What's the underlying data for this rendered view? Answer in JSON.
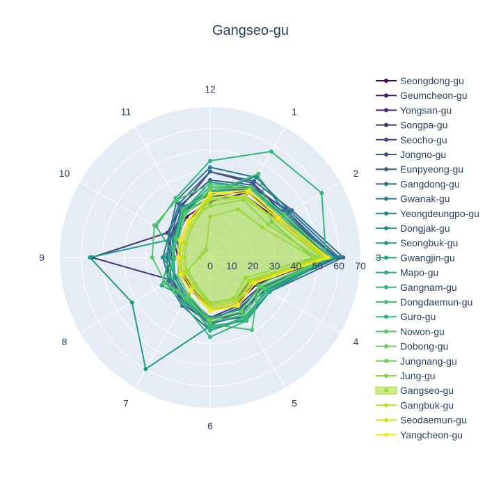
{
  "chart_data": {
    "type": "radar",
    "title": "Gangseo-gu",
    "angular_categories": [
      "12",
      "1",
      "2",
      "3",
      "4",
      "5",
      "6",
      "7",
      "8",
      "9",
      "10",
      "11"
    ],
    "radial_range": [
      0,
      70
    ],
    "radial_ticks": [
      "0",
      "10",
      "20",
      "30",
      "40",
      "50",
      "60",
      "70"
    ],
    "highlighted_series": "Gangseo-gu",
    "series": [
      {
        "name": "Seongdong-gu",
        "color": "#440154",
        "values": [
          28,
          33,
          36,
          54,
          25,
          25,
          24,
          16,
          15,
          14,
          16,
          20
        ]
      },
      {
        "name": "Geumcheon-gu",
        "color": "#471365",
        "values": [
          26,
          35,
          37,
          56,
          22,
          23,
          22,
          17,
          16,
          14,
          18,
          22
        ]
      },
      {
        "name": "Yongsan-gu",
        "color": "#482475",
        "values": [
          28,
          36,
          37,
          57,
          24,
          24,
          23,
          18,
          16,
          15,
          20,
          24
        ]
      },
      {
        "name": "Songpa-gu",
        "color": "#463480",
        "values": [
          40,
          40,
          40,
          58,
          27,
          26,
          28,
          22,
          21,
          55,
          23,
          27
        ]
      },
      {
        "name": "Seocho-gu",
        "color": "#414487",
        "values": [
          30,
          38,
          43,
          60,
          30,
          29,
          31,
          25,
          22,
          20,
          21,
          25
        ]
      },
      {
        "name": "Jongno-gu",
        "color": "#3b528b",
        "values": [
          30,
          37,
          41,
          59,
          28,
          27,
          29,
          22,
          19,
          18,
          20,
          26
        ]
      },
      {
        "name": "Eunpyeong-gu",
        "color": "#355f8d",
        "values": [
          36,
          39,
          42,
          58,
          31,
          32,
          30,
          24,
          21,
          19,
          21,
          28
        ]
      },
      {
        "name": "Gangdong-gu",
        "color": "#2f6c8e",
        "values": [
          40,
          41,
          44,
          62,
          32,
          33,
          34,
          26,
          23,
          20,
          22,
          29
        ]
      },
      {
        "name": "Gwanak-gu",
        "color": "#2a788e",
        "values": [
          42,
          43,
          43,
          60,
          29,
          31,
          31,
          24,
          22,
          22,
          22,
          31
        ]
      },
      {
        "name": "Yeongdeungpo-gu",
        "color": "#25848e",
        "values": [
          29,
          44,
          41,
          58,
          28,
          30,
          29,
          22,
          19,
          17,
          19,
          27
        ]
      },
      {
        "name": "Dongjak-gu",
        "color": "#21918c",
        "values": [
          31,
          38,
          39,
          56,
          27,
          28,
          28,
          21,
          18,
          22,
          17,
          26
        ]
      },
      {
        "name": "Seongbuk-gu",
        "color": "#1e9c89",
        "values": [
          35,
          38,
          38,
          57,
          32,
          34,
          32,
          60,
          42,
          56,
          18,
          25
        ]
      },
      {
        "name": "Gwangjin-gu",
        "color": "#20a486",
        "values": [
          31,
          36,
          37,
          54,
          29,
          31,
          30,
          23,
          20,
          17,
          18,
          24
        ]
      },
      {
        "name": "Mapo-gu",
        "color": "#28ae80",
        "values": [
          33,
          37,
          40,
          56,
          31,
          32,
          34,
          22,
          26,
          19,
          19,
          25
        ]
      },
      {
        "name": "Gangnam-gu",
        "color": "#35b779",
        "values": [
          28,
          33,
          35,
          52,
          30,
          33,
          33,
          23,
          20,
          17,
          19,
          24
        ]
      },
      {
        "name": "Dongdaemun-gu",
        "color": "#44bf70",
        "values": [
          30,
          45,
          33,
          48,
          26,
          39,
          31,
          21,
          24,
          17,
          18,
          26
        ]
      },
      {
        "name": "Guro-gu",
        "color": "#32b67a",
        "values": [
          45,
          57,
          60,
          54,
          30,
          34,
          37,
          25,
          24,
          16,
          29,
          32
        ]
      },
      {
        "name": "Nowon-gu",
        "color": "#56c667",
        "values": [
          34,
          38,
          40,
          56,
          29,
          31,
          30,
          22,
          24,
          27,
          30,
          31
        ]
      },
      {
        "name": "Dobong-gu",
        "color": "#6ccd5a",
        "values": [
          32,
          37,
          38,
          55,
          27,
          29,
          29,
          20,
          17,
          15,
          17,
          23
        ]
      },
      {
        "name": "Jungnang-gu",
        "color": "#75d054",
        "values": [
          24,
          31,
          31,
          50,
          22,
          25,
          25,
          18,
          16,
          14,
          16,
          20
        ]
      },
      {
        "name": "Jung-gu",
        "color": "#85d44a",
        "values": [
          19,
          26,
          28,
          48,
          19,
          22,
          21,
          14,
          12,
          5,
          4,
          4
        ]
      },
      {
        "name": "Gangseo-gu",
        "color": "#a2da37",
        "values": [
          27,
          32,
          35,
          52,
          21,
          23,
          22,
          15,
          13,
          12,
          13,
          17
        ]
      },
      {
        "name": "Gangbuk-gu",
        "color": "#bade28",
        "values": [
          28,
          33,
          35,
          53,
          22,
          24,
          23,
          16,
          14,
          13,
          14,
          18
        ]
      },
      {
        "name": "Seodaemun-gu",
        "color": "#d2e21b",
        "values": [
          29,
          35,
          36,
          54,
          23,
          25,
          24,
          17,
          15,
          14,
          15,
          19
        ]
      },
      {
        "name": "Yangcheon-gu",
        "color": "#fde725",
        "values": [
          30,
          36,
          37,
          55,
          24,
          26,
          25,
          18,
          16,
          15,
          16,
          20
        ]
      }
    ]
  }
}
